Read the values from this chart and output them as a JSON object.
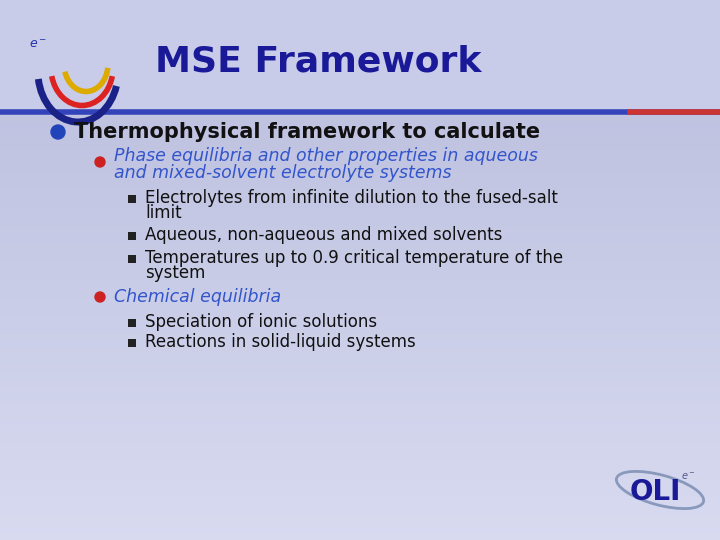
{
  "title": "MSE Framework",
  "title_color": "#1a1a99",
  "title_fontsize": 26,
  "bg_gradient_top": "#bfc4e0",
  "bg_gradient_bottom": "#d8daf0",
  "title_bg_color": "#c8cce8",
  "divider_color": "#3344bb",
  "divider_color2": "#cc3333",
  "bullet1_text": "Thermophysical framework to calculate",
  "bullet1_color": "#111111",
  "bullet1_fontsize": 15,
  "bullet1_dot_color": "#2244bb",
  "sub_bullet1_line1": "Phase equilibria and other properties in aqueous",
  "sub_bullet1_line2": "and mixed-solvent electrolyte systems",
  "sub_bullet1_color": "#3355cc",
  "sub_bullet1_fontsize": 12.5,
  "sub_bullet1_dot_color": "#cc2222",
  "sub_sub_bullets1": [
    "Electrolytes from infinite dilution to the fused-salt\nlimit",
    "Aqueous, non-aqueous and mixed solvents",
    "Temperatures up to 0.9 critical temperature of the\nsystem"
  ],
  "sub_bullet2_text": "Chemical equilibria",
  "sub_bullet2_color": "#3355cc",
  "sub_bullet2_fontsize": 12.5,
  "sub_bullet2_dot_color": "#cc2222",
  "sub_sub_bullets2": [
    "Speciation of ionic solutions",
    "Reactions in solid-liquid systems"
  ],
  "sub_sub_bullet_color": "#111111",
  "sub_sub_bullet_fontsize": 12,
  "square_bullet_color": "#222222",
  "oli_color": "#1a1a99",
  "oli_orbit_color": "#7788bb"
}
